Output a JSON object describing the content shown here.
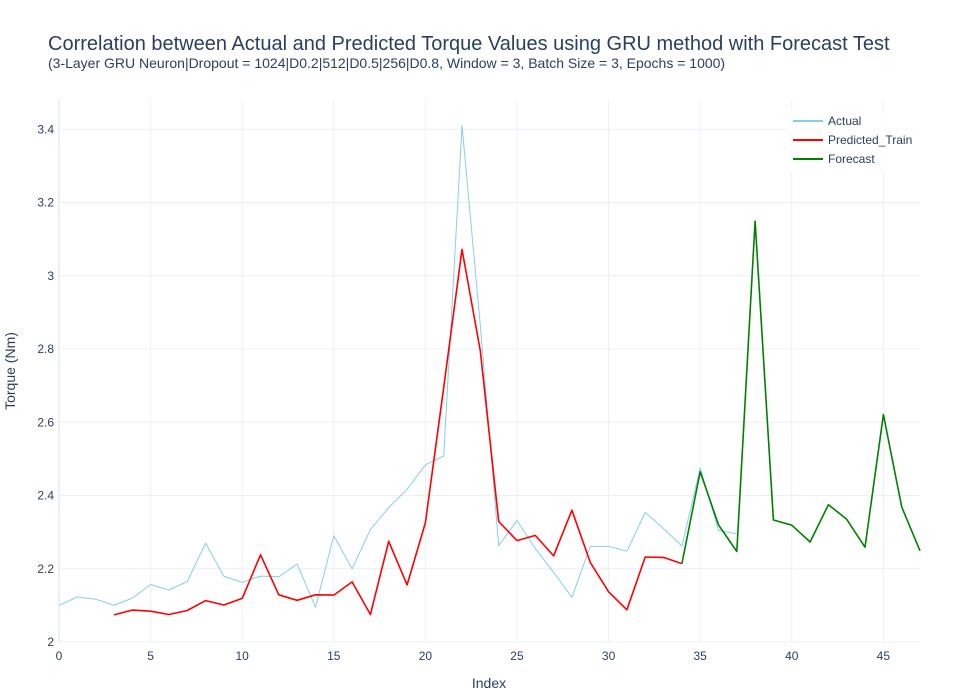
{
  "chart_data": {
    "type": "line",
    "title": "Correlation between Actual and Predicted Torque Values using GRU method with Forecast Test",
    "subtitle": "(3-Layer GRU Neuron|Dropout = 1024|D0.2|512|D0.5|256|D0.8, Window = 3, Batch Size = 3, Epochs = 1000)",
    "xlabel": "Index",
    "ylabel": "Torque (Nm)",
    "xlim": [
      0,
      47
    ],
    "ylim": [
      2.0,
      3.48
    ],
    "xticks": [
      0,
      5,
      10,
      15,
      20,
      25,
      30,
      35,
      40,
      45
    ],
    "yticks": [
      2,
      2.2,
      2.4,
      2.6,
      2.8,
      3,
      3.2,
      3.4
    ],
    "ytick_labels": [
      "2",
      "2.2",
      "2.4",
      "2.6",
      "2.8",
      "3",
      "3.2",
      "3.4"
    ],
    "grid": true,
    "legend_position": "top-right",
    "series": [
      {
        "name": "Actual",
        "color": "#87ceeb",
        "x": [
          0,
          1,
          2,
          3,
          4,
          5,
          6,
          7,
          8,
          9,
          10,
          11,
          12,
          13,
          14,
          15,
          16,
          17,
          18,
          19,
          20,
          21,
          22,
          23,
          24,
          25,
          26,
          27,
          28,
          29,
          30,
          31,
          32,
          33,
          34,
          35,
          36,
          37
        ],
        "y": [
          2.1,
          2.123,
          2.117,
          2.1,
          2.12,
          2.157,
          2.142,
          2.165,
          2.27,
          2.179,
          2.163,
          2.18,
          2.178,
          2.213,
          2.095,
          2.29,
          2.2,
          2.307,
          2.367,
          2.417,
          2.484,
          2.508,
          3.41,
          2.865,
          2.263,
          2.332,
          2.255,
          2.19,
          2.122,
          2.261,
          2.261,
          2.248,
          2.354,
          2.31,
          2.262,
          2.475,
          2.305,
          2.295
        ]
      },
      {
        "name": "Predicted_Train",
        "color": "#ff0000",
        "x": [
          3,
          4,
          5,
          6,
          7,
          8,
          9,
          10,
          11,
          12,
          13,
          14,
          15,
          16,
          17,
          18,
          19,
          20,
          21,
          22,
          23,
          24,
          25,
          26,
          27,
          28,
          29,
          30,
          31,
          32,
          33,
          34
        ],
        "y": [
          2.074,
          2.087,
          2.084,
          2.075,
          2.086,
          2.113,
          2.101,
          2.119,
          2.238,
          2.129,
          2.114,
          2.129,
          2.128,
          2.164,
          2.075,
          2.275,
          2.156,
          2.326,
          2.695,
          3.072,
          2.795,
          2.329,
          2.277,
          2.291,
          2.235,
          2.36,
          2.217,
          2.137,
          2.088,
          2.232,
          2.231,
          2.214
        ]
      },
      {
        "name": "Forecast",
        "color": "#008000",
        "x": [
          34,
          35,
          36,
          37,
          38,
          39,
          40,
          41,
          42,
          43,
          44,
          45,
          46,
          47
        ],
        "y": [
          2.214,
          2.465,
          2.32,
          2.247,
          3.149,
          2.333,
          2.319,
          2.273,
          2.375,
          2.335,
          2.259,
          2.621,
          2.369,
          2.249
        ]
      }
    ]
  }
}
